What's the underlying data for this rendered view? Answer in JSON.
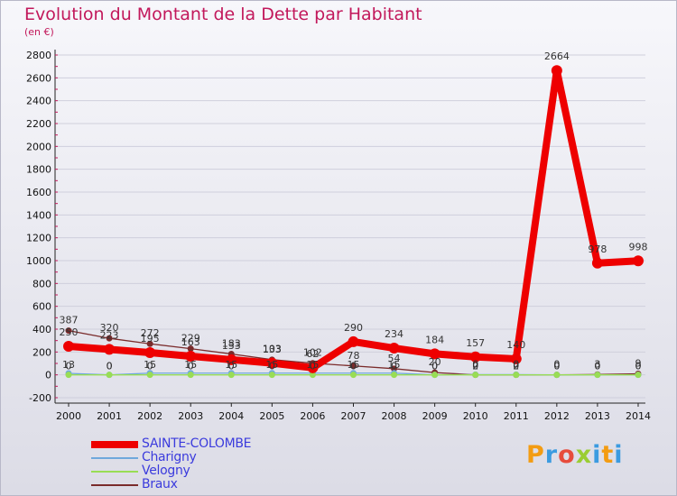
{
  "header": {
    "title": "Evolution du Montant de la Dette par Habitant",
    "subtitle": "(en €)"
  },
  "colors": {
    "title": "#c2185b",
    "legend_text": "#3b3bdd",
    "grid": "#cfcfdc",
    "axis": "#222222"
  },
  "chart_data": {
    "type": "line",
    "title": "Evolution du Montant de la Dette par Habitant",
    "subtitle": "(en €)",
    "xlabel": "",
    "ylabel": "",
    "x": [
      "2000",
      "2001",
      "2002",
      "2003",
      "2004",
      "2005",
      "2006",
      "2007",
      "2008",
      "2009",
      "2010",
      "2011",
      "2012",
      "2013",
      "2014"
    ],
    "ylim": [
      -200,
      2800
    ],
    "yticks": [
      "-200",
      "0",
      "200",
      "400",
      "600",
      "800",
      "1000",
      "1200",
      "1400",
      "1600",
      "1800",
      "2000",
      "2200",
      "2400",
      "2600",
      "2800"
    ],
    "grid": "horizontal",
    "legend_position": "bottom-left",
    "series": [
      {
        "name": "SAINTE-COLOMBE",
        "color": "#ee0000",
        "values": [
          250,
          223,
          195,
          163,
          133,
          103,
          62,
          290,
          234,
          184,
          157,
          140,
          2664,
          978,
          998
        ],
        "labels": [
          "250",
          "223",
          "195",
          "163",
          "133",
          "103",
          "62",
          "290",
          "234",
          "184",
          "157",
          "140",
          "2664",
          "978",
          "998"
        ]
      },
      {
        "name": "Charigny",
        "color": "#6fa8dc",
        "values": [
          13,
          0,
          15,
          15,
          15,
          15,
          15,
          15,
          15,
          0,
          2,
          2,
          0,
          0,
          0
        ],
        "labels": [
          "13",
          "0",
          "15",
          "15",
          "15",
          "15",
          "15",
          "15",
          "15",
          "0",
          "2",
          "2",
          "0",
          "0",
          "0"
        ]
      },
      {
        "name": "Velogny",
        "color": "#99dd55",
        "values": [
          0,
          0,
          0,
          0,
          0,
          0,
          0,
          0,
          0,
          0,
          0,
          0,
          0,
          0,
          0
        ],
        "labels": [
          "0",
          "0",
          "0",
          "0",
          "0",
          "0",
          "0",
          "0",
          "0",
          "0",
          "0",
          "0",
          "0",
          "0",
          "0"
        ]
      },
      {
        "name": "Braux",
        "color": "#7a2b2b",
        "values": [
          387,
          320,
          272,
          229,
          183,
          133,
          102,
          78,
          54,
          20,
          0,
          0,
          0,
          3,
          9
        ],
        "labels": [
          "387",
          "320",
          "272",
          "229",
          "183",
          "133",
          "102",
          "78",
          "54",
          "20",
          "0",
          "0",
          "0",
          "3",
          "9"
        ]
      }
    ]
  },
  "logo": {
    "letters": [
      "P",
      "r",
      "o",
      "x",
      "i",
      "t",
      "i"
    ],
    "colors": [
      "#f39c12",
      "#3b9be0",
      "#e74c3c",
      "#9acd32",
      "#3b9be0",
      "#f39c12",
      "#3b9be0"
    ]
  }
}
